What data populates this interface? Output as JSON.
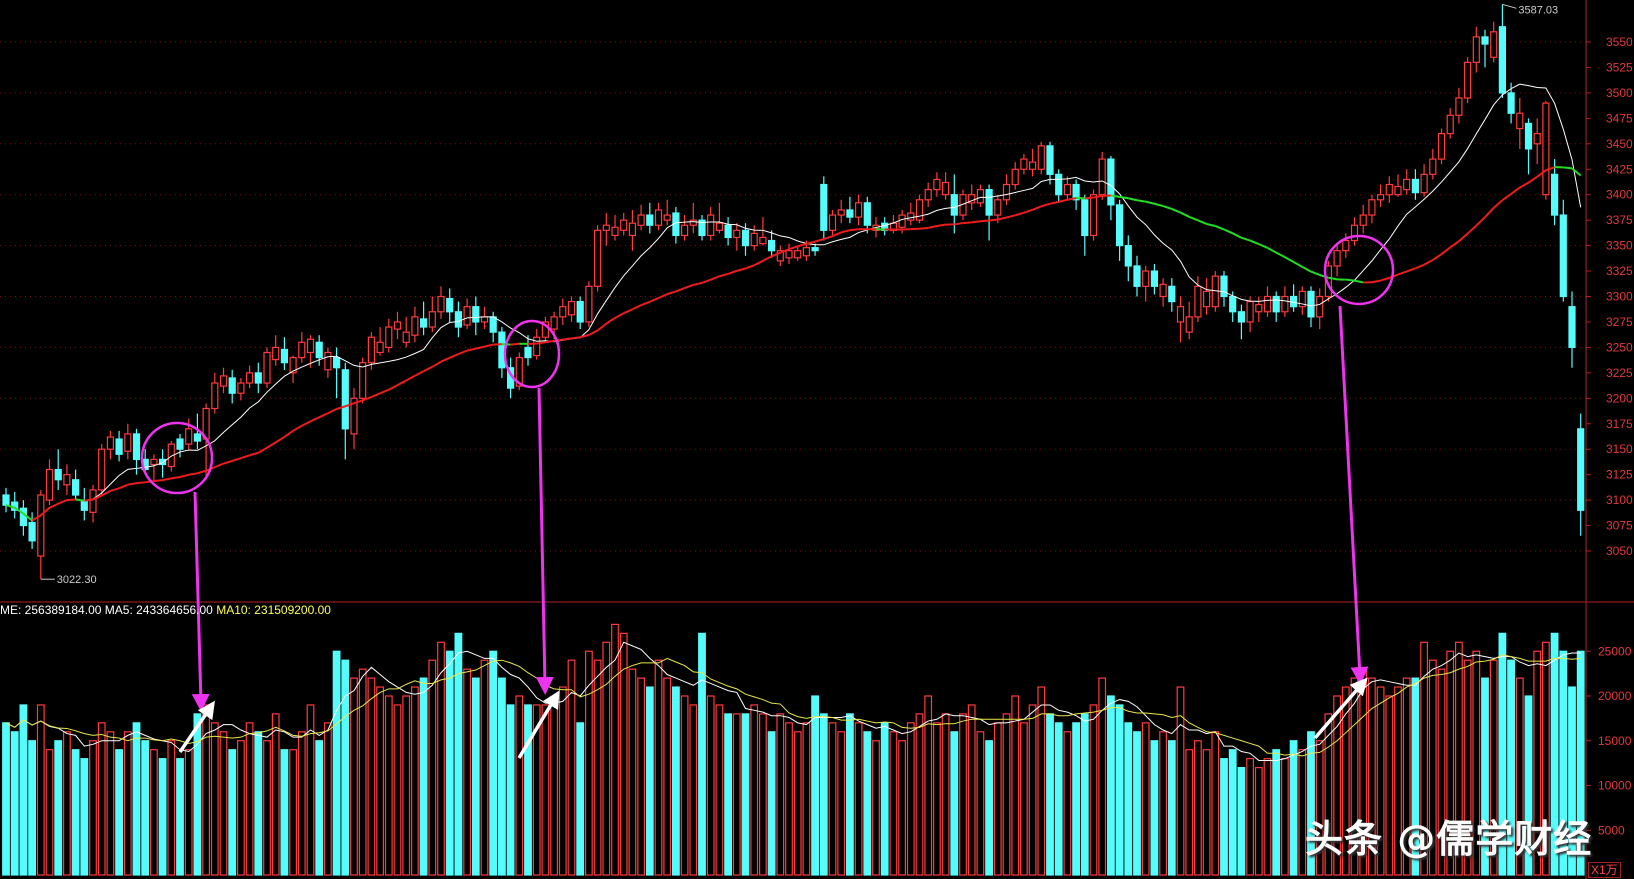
{
  "chart_data": [
    {
      "type": "candlestick",
      "price_ticks": [
        3550,
        3525,
        3500,
        3475,
        3450,
        3425,
        3400,
        3375,
        3350,
        3325,
        3300,
        3275,
        3250,
        3225,
        3200,
        3175,
        3150,
        3125,
        3100,
        3075,
        3050
      ],
      "ylim": [
        3000,
        3590
      ],
      "grid": true,
      "high_label": "3587.03",
      "low_label": "3022.30",
      "ohlcv_fields": [
        "open",
        "close",
        "high",
        "low",
        "volume"
      ],
      "candles": [
        [
          3105,
          3095,
          3112,
          3088,
          17000
        ],
        [
          3098,
          3090,
          3108,
          3082,
          16000
        ],
        [
          3092,
          3075,
          3100,
          3065,
          19000
        ],
        [
          3078,
          3060,
          3088,
          3052,
          15000
        ],
        [
          3045,
          3105,
          3110,
          3022.3,
          19000
        ],
        [
          3100,
          3130,
          3140,
          3095,
          14000
        ],
        [
          3130,
          3120,
          3150,
          3110,
          15000
        ],
        [
          3115,
          3125,
          3135,
          3105,
          16000
        ],
        [
          3120,
          3105,
          3130,
          3100,
          14000
        ],
        [
          3100,
          3090,
          3112,
          3080,
          13000
        ],
        [
          3088,
          3110,
          3115,
          3078,
          15000
        ],
        [
          3110,
          3150,
          3155,
          3105,
          17000
        ],
        [
          3150,
          3162,
          3168,
          3140,
          16000
        ],
        [
          3160,
          3145,
          3168,
          3138,
          14000
        ],
        [
          3148,
          3165,
          3175,
          3140,
          16000
        ],
        [
          3165,
          3140,
          3170,
          3125,
          17000
        ],
        [
          3140,
          3130,
          3150,
          3128,
          15000
        ],
        [
          3135,
          3140,
          3145,
          3120,
          14000
        ],
        [
          3140,
          3135,
          3150,
          3122,
          13000
        ],
        [
          3133,
          3155,
          3158,
          3128,
          15000
        ],
        [
          3160,
          3150,
          3165,
          3142,
          13000
        ],
        [
          3155,
          3170,
          3180,
          3150,
          14000
        ],
        [
          3165,
          3158,
          3185,
          3150,
          18000
        ],
        [
          3160,
          3190,
          3195,
          3120,
          19000
        ],
        [
          3190,
          3215,
          3225,
          3185,
          17000
        ],
        [
          3212,
          3222,
          3230,
          3205,
          16000
        ],
        [
          3220,
          3205,
          3228,
          3195,
          14000
        ],
        [
          3205,
          3215,
          3220,
          3198,
          15000
        ],
        [
          3215,
          3225,
          3232,
          3210,
          17000
        ],
        [
          3225,
          3215,
          3235,
          3205,
          16000
        ],
        [
          3215,
          3245,
          3250,
          3210,
          15000
        ],
        [
          3238,
          3250,
          3262,
          3232,
          18000
        ],
        [
          3248,
          3235,
          3260,
          3228,
          14000
        ],
        [
          3225,
          3240,
          3242,
          3215,
          14000
        ],
        [
          3240,
          3255,
          3265,
          3235,
          16000
        ],
        [
          3245,
          3258,
          3262,
          3230,
          19000
        ],
        [
          3255,
          3240,
          3262,
          3232,
          15000
        ],
        [
          3228,
          3245,
          3250,
          3220,
          17000
        ],
        [
          3240,
          3230,
          3250,
          3200,
          25000
        ],
        [
          3228,
          3170,
          3235,
          3140,
          24000
        ],
        [
          3165,
          3200,
          3210,
          3150,
          22000
        ],
        [
          3200,
          3235,
          3240,
          3195,
          23000
        ],
        [
          3235,
          3260,
          3265,
          3228,
          22000
        ],
        [
          3245,
          3255,
          3270,
          3242,
          21000
        ],
        [
          3250,
          3270,
          3278,
          3245,
          20000
        ],
        [
          3268,
          3275,
          3285,
          3258,
          19000
        ],
        [
          3255,
          3265,
          3280,
          3250,
          20000
        ],
        [
          3262,
          3280,
          3290,
          3255,
          21000
        ],
        [
          3278,
          3270,
          3295,
          3262,
          22000
        ],
        [
          3270,
          3285,
          3300,
          3265,
          24000
        ],
        [
          3285,
          3300,
          3310,
          3278,
          26000
        ],
        [
          3298,
          3285,
          3308,
          3275,
          25000
        ],
        [
          3285,
          3270,
          3295,
          3260,
          27000
        ],
        [
          3272,
          3290,
          3298,
          3268,
          23000
        ],
        [
          3290,
          3275,
          3300,
          3262,
          22000
        ],
        [
          3275,
          3280,
          3290,
          3268,
          24000
        ],
        [
          3280,
          3265,
          3285,
          3255,
          25000
        ],
        [
          3265,
          3230,
          3270,
          3220,
          22000
        ],
        [
          3230,
          3210,
          3240,
          3200,
          19000
        ],
        [
          3212,
          3240,
          3245,
          3208,
          20000
        ],
        [
          3250,
          3240,
          3262,
          3232,
          19000
        ],
        [
          3242,
          3260,
          3268,
          3238,
          19000
        ],
        [
          3260,
          3275,
          3280,
          3255,
          19000
        ],
        [
          3268,
          3280,
          3285,
          3258,
          19000
        ],
        [
          3280,
          3290,
          3298,
          3272,
          21000
        ],
        [
          3282,
          3295,
          3300,
          3275,
          24000
        ],
        [
          3295,
          3275,
          3300,
          3268,
          17000
        ],
        [
          3275,
          3310,
          3315,
          3270,
          25000
        ],
        [
          3310,
          3365,
          3370,
          3305,
          24000
        ],
        [
          3365,
          3370,
          3382,
          3350,
          26000
        ],
        [
          3360,
          3368,
          3380,
          3355,
          28000
        ],
        [
          3365,
          3375,
          3382,
          3360,
          27000
        ],
        [
          3360,
          3372,
          3385,
          3345,
          23000
        ],
        [
          3370,
          3380,
          3390,
          3365,
          22000
        ],
        [
          3380,
          3370,
          3392,
          3362,
          21000
        ],
        [
          3370,
          3385,
          3392,
          3365,
          24000
        ],
        [
          3375,
          3380,
          3395,
          3370,
          22000
        ],
        [
          3382,
          3360,
          3388,
          3352,
          21000
        ],
        [
          3360,
          3370,
          3380,
          3355,
          20000
        ],
        [
          3370,
          3375,
          3392,
          3362,
          19000
        ],
        [
          3375,
          3360,
          3380,
          3355,
          27000
        ],
        [
          3360,
          3380,
          3388,
          3355,
          20000
        ],
        [
          3365,
          3372,
          3392,
          3362,
          19000
        ],
        [
          3370,
          3358,
          3378,
          3350,
          18000
        ],
        [
          3358,
          3365,
          3372,
          3345,
          18000
        ],
        [
          3365,
          3350,
          3372,
          3340,
          18000
        ],
        [
          3350,
          3362,
          3370,
          3345,
          19000
        ],
        [
          3352,
          3358,
          3378,
          3350,
          18000
        ],
        [
          3355,
          3345,
          3365,
          3338,
          16000
        ],
        [
          3335,
          3345,
          3350,
          3330,
          18000
        ],
        [
          3338,
          3345,
          3352,
          3332,
          17000
        ],
        [
          3338,
          3345,
          3350,
          3335,
          16000
        ],
        [
          3340,
          3348,
          3355,
          3335,
          17000
        ],
        [
          3348,
          3345,
          3352,
          3340,
          20000
        ],
        [
          3410,
          3365,
          3418,
          3355,
          18000
        ],
        [
          3365,
          3380,
          3385,
          3360,
          17000
        ],
        [
          3380,
          3385,
          3395,
          3372,
          16000
        ],
        [
          3385,
          3378,
          3398,
          3372,
          18000
        ],
        [
          3378,
          3392,
          3400,
          3370,
          17000
        ],
        [
          3392,
          3370,
          3398,
          3362,
          16000
        ],
        [
          3365,
          3370,
          3378,
          3358,
          15000
        ],
        [
          3372,
          3365,
          3378,
          3360,
          17000
        ],
        [
          3365,
          3372,
          3380,
          3362,
          16000
        ],
        [
          3368,
          3380,
          3385,
          3362,
          15000
        ],
        [
          3375,
          3382,
          3392,
          3370,
          17000
        ],
        [
          3375,
          3395,
          3400,
          3372,
          18000
        ],
        [
          3395,
          3405,
          3412,
          3388,
          20000
        ],
        [
          3405,
          3415,
          3422,
          3398,
          17000
        ],
        [
          3400,
          3412,
          3422,
          3395,
          18000
        ],
        [
          3400,
          3380,
          3420,
          3362,
          16000
        ],
        [
          3380,
          3400,
          3405,
          3375,
          18000
        ],
        [
          3392,
          3400,
          3410,
          3385,
          19000
        ],
        [
          3392,
          3405,
          3410,
          3388,
          16000
        ],
        [
          3405,
          3380,
          3410,
          3355,
          15000
        ],
        [
          3380,
          3395,
          3400,
          3372,
          17000
        ],
        [
          3395,
          3410,
          3420,
          3390,
          18000
        ],
        [
          3410,
          3425,
          3432,
          3405,
          20000
        ],
        [
          3425,
          3435,
          3440,
          3420,
          17000
        ],
        [
          3425,
          3432,
          3445,
          3418,
          19000
        ],
        [
          3425,
          3448,
          3452,
          3420,
          21000
        ],
        [
          3448,
          3420,
          3452,
          3410,
          18000
        ],
        [
          3420,
          3400,
          3425,
          3392,
          17000
        ],
        [
          3400,
          3410,
          3418,
          3395,
          16000
        ],
        [
          3410,
          3395,
          3415,
          3385,
          17000
        ],
        [
          3395,
          3360,
          3400,
          3340,
          18000
        ],
        [
          3360,
          3400,
          3405,
          3355,
          19000
        ],
        [
          3400,
          3435,
          3442,
          3395,
          22000
        ],
        [
          3435,
          3390,
          3438,
          3375,
          20000
        ],
        [
          3390,
          3350,
          3395,
          3335,
          19000
        ],
        [
          3350,
          3330,
          3360,
          3315,
          17000
        ],
        [
          3330,
          3310,
          3340,
          3300,
          16000
        ],
        [
          3310,
          3325,
          3330,
          3295,
          17000
        ],
        [
          3325,
          3310,
          3332,
          3302,
          15000
        ],
        [
          3300,
          3312,
          3318,
          3290,
          16000
        ],
        [
          3310,
          3295,
          3318,
          3285,
          15000
        ],
        [
          3275,
          3290,
          3300,
          3255,
          21000
        ],
        [
          3265,
          3280,
          3295,
          3258,
          14000
        ],
        [
          3280,
          3310,
          3320,
          3275,
          15000
        ],
        [
          3290,
          3305,
          3318,
          3282,
          14000
        ],
        [
          3290,
          3320,
          3325,
          3285,
          16000
        ],
        [
          3320,
          3300,
          3325,
          3290,
          13000
        ],
        [
          3300,
          3285,
          3305,
          3275,
          14000
        ],
        [
          3285,
          3275,
          3292,
          3258,
          12000
        ],
        [
          3275,
          3295,
          3300,
          3265,
          13000
        ],
        [
          3285,
          3292,
          3300,
          3275,
          12000
        ],
        [
          3285,
          3300,
          3310,
          3280,
          13000
        ],
        [
          3300,
          3285,
          3305,
          3275,
          14000
        ],
        [
          3285,
          3300,
          3310,
          3280,
          13000
        ],
        [
          3300,
          3290,
          3312,
          3285,
          15000
        ],
        [
          3290,
          3305,
          3310,
          3282,
          14000
        ],
        [
          3305,
          3280,
          3310,
          3270,
          16000
        ],
        [
          3280,
          3300,
          3308,
          3268,
          15000
        ],
        [
          3300,
          3330,
          3335,
          3295,
          18000
        ],
        [
          3330,
          3345,
          3352,
          3320,
          20000
        ],
        [
          3345,
          3355,
          3362,
          3338,
          21000
        ],
        [
          3355,
          3370,
          3378,
          3350,
          22000
        ],
        [
          3370,
          3380,
          3390,
          3362,
          23000
        ],
        [
          3380,
          3395,
          3400,
          3372,
          22000
        ],
        [
          3395,
          3400,
          3410,
          3388,
          21000
        ],
        [
          3400,
          3410,
          3418,
          3392,
          20000
        ],
        [
          3400,
          3408,
          3420,
          3398,
          21000
        ],
        [
          3405,
          3415,
          3425,
          3400,
          22000
        ],
        [
          3415,
          3402,
          3425,
          3395,
          22000
        ],
        [
          3402,
          3420,
          3430,
          3398,
          26000
        ],
        [
          3420,
          3435,
          3445,
          3415,
          24000
        ],
        [
          3435,
          3460,
          3465,
          3430,
          23000
        ],
        [
          3460,
          3478,
          3485,
          3455,
          25000
        ],
        [
          3478,
          3495,
          3505,
          3470,
          26000
        ],
        [
          3495,
          3530,
          3535,
          3490,
          24000
        ],
        [
          3530,
          3555,
          3565,
          3520,
          25000
        ],
        [
          3555,
          3548,
          3562,
          3525,
          22000
        ],
        [
          3535,
          3560,
          3570,
          3530,
          24000
        ],
        [
          3565,
          3500,
          3587.03,
          3495,
          27000
        ],
        [
          3500,
          3480,
          3510,
          3470,
          24000
        ],
        [
          3465,
          3480,
          3495,
          3445,
          22000
        ],
        [
          3470,
          3445,
          3475,
          3420,
          20000
        ],
        [
          3450,
          3460,
          3475,
          3430,
          25000
        ],
        [
          3400,
          3490,
          3492,
          3395,
          26000
        ],
        [
          3420,
          3380,
          3435,
          3370,
          27000
        ],
        [
          3380,
          3300,
          3395,
          3295,
          25000
        ],
        [
          3290,
          3250,
          3305,
          3230,
          21000
        ],
        [
          3170,
          3090,
          3185,
          3065,
          25000
        ]
      ]
    },
    {
      "type": "bar",
      "volume_ticks": [
        25000,
        20000,
        15000,
        10000,
        5000
      ],
      "ylim": [
        0,
        29000
      ],
      "unit_label": "X1万",
      "header": {
        "vol_label": "ME: 256389184.00",
        "ma5_label": "MA5: 243364656.00",
        "ma10_label": "MA10: 231509200.00"
      }
    }
  ],
  "colors": {
    "up": "#ff3b3b",
    "down": "#54fcfc",
    "ma_short": "#ffffff",
    "ma_long_up": "#ee1c1c",
    "ma_long_down": "#22dd22",
    "vol_ma10": "#e8e84a",
    "grid": "#7a1010",
    "axis": "#b02020",
    "annotation": "#ee33ee"
  },
  "watermark": "头条 @儒学财经"
}
